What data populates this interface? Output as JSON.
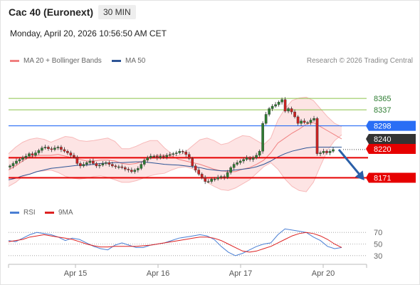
{
  "header": {
    "title": "Cac 40 (Euronext)",
    "timeframe": "30 MIN",
    "datetime": "Monday, April 20, 2026 10:56:50 AM CET"
  },
  "legend": {
    "bollinger": "MA 20 + Bollinger Bands",
    "ma50": "MA 50",
    "copyright": "Research © 2026 Trading Central",
    "rsi": "RSI",
    "rsi_ma": "9MA"
  },
  "colors": {
    "bollinger": "#f08080",
    "ma50": "#2e5596",
    "up": "#2e7d32",
    "down": "#cc2222",
    "resistance_green": "#8bc34a",
    "pivot_blue": "#2a6ef5",
    "support_red": "#e60000",
    "rsi": "#4a7fd4",
    "rsi_ma": "#dd2222"
  },
  "chart_data": [
    {
      "type": "candlestick",
      "title": "Cac 40 (Euronext)",
      "x_tick_labels": [
        "Apr 15",
        "Apr 16",
        "Apr 17",
        "Apr 20"
      ],
      "ylim": [
        8118,
        8440
      ],
      "levels": [
        {
          "value": 8365,
          "label": "8365",
          "kind": "resistance"
        },
        {
          "value": 8337,
          "label": "8337",
          "kind": "resistance"
        },
        {
          "value": 8298,
          "label": "8298",
          "kind": "pivot"
        },
        {
          "value": 8240,
          "label": "8240",
          "kind": "last"
        },
        {
          "value": 8220,
          "label": "8220",
          "kind": "support"
        },
        {
          "value": 8171,
          "label": "8171",
          "kind": "support"
        }
      ],
      "forecast_arrow": {
        "from": 8240,
        "to": 8173
      },
      "close_series": [
        8200,
        8206,
        8212,
        8216,
        8220,
        8224,
        8230,
        8226,
        8232,
        8238,
        8244,
        8246,
        8242,
        8240,
        8244,
        8246,
        8240,
        8236,
        8232,
        8226,
        8222,
        8206,
        8200,
        8204,
        8208,
        8212,
        8206,
        8200,
        8202,
        8206,
        8208,
        8204,
        8200,
        8198,
        8198,
        8196,
        8192,
        8190,
        8186,
        8190,
        8194,
        8204,
        8214,
        8220,
        8224,
        8224,
        8220,
        8224,
        8222,
        8226,
        8228,
        8230,
        8232,
        8236,
        8234,
        8228,
        8218,
        8200,
        8190,
        8180,
        8172,
        8162,
        8162,
        8168,
        8168,
        8172,
        8174,
        8172,
        8184,
        8196,
        8204,
        8208,
        8212,
        8216,
        8220,
        8216,
        8220,
        8226,
        8236,
        8304,
        8326,
        8340,
        8346,
        8350,
        8356,
        8362,
        8334,
        8340,
        8332,
        8320,
        8304,
        8310,
        8306,
        8306,
        8312,
        8316,
        8230,
        8232,
        8236,
        8232,
        8236,
        8240
      ],
      "bollinger_upper": [
        8230,
        8246,
        8258,
        8265,
        8268,
        8265,
        8258,
        8265,
        8272,
        8270,
        8262,
        8260,
        8262,
        8265,
        8268,
        8260,
        8242,
        8242,
        8248,
        8256,
        8262,
        8262,
        8244,
        8230,
        8225,
        8235,
        8250,
        8264,
        8268,
        8262,
        8252,
        8256,
        8266,
        8274,
        8272,
        8262,
        8252,
        8268,
        8312,
        8340,
        8360,
        8366,
        8368,
        8360,
        8340,
        8320,
        8304,
        8296
      ],
      "bollinger_lower": [
        8150,
        8160,
        8174,
        8180,
        8186,
        8188,
        8190,
        8184,
        8175,
        8170,
        8168,
        8170,
        8174,
        8176,
        8172,
        8166,
        8160,
        8160,
        8164,
        8170,
        8176,
        8180,
        8182,
        8190,
        8196,
        8198,
        8193,
        8178,
        8160,
        8150,
        8142,
        8140,
        8146,
        8156,
        8166,
        8182,
        8198,
        8208,
        8192,
        8168,
        8150,
        8140,
        8137,
        8160,
        8200,
        8238,
        8262,
        8276
      ],
      "ma20": [
        8190,
        8200,
        8212,
        8222,
        8226,
        8226,
        8226,
        8228,
        8224,
        8220,
        8216,
        8212,
        8212,
        8214,
        8214,
        8212,
        8206,
        8204,
        8206,
        8212,
        8220,
        8226,
        8226,
        8224,
        8216,
        8212,
        8208,
        8204,
        8198,
        8192,
        8188,
        8186,
        8186,
        8192,
        8196,
        8204,
        8214,
        8232,
        8256,
        8268,
        8280,
        8290,
        8302,
        8306,
        8296,
        8286,
        8276,
        8266
      ],
      "ma50": [
        8166,
        8170,
        8176,
        8180,
        8186,
        8190,
        8194,
        8196,
        8198,
        8200,
        8202,
        8202,
        8204,
        8206,
        8207,
        8208,
        8208,
        8209,
        8210,
        8210,
        8208,
        8206,
        8204,
        8203,
        8202,
        8200,
        8198,
        8196,
        8192,
        8190,
        8188,
        8188,
        8190,
        8192,
        8194,
        8198,
        8204,
        8212,
        8222,
        8230,
        8236,
        8240,
        8244,
        8246,
        8246,
        8246,
        8246,
        8246
      ]
    },
    {
      "type": "line",
      "legend": [
        "RSI",
        "9MA"
      ],
      "ylim": [
        20,
        80
      ],
      "y_ticks": [
        70,
        50,
        30
      ],
      "x_tick_labels": [
        "Apr 15",
        "Apr 16",
        "Apr 17",
        "Apr 20"
      ],
      "rsi": [
        56,
        54,
        60,
        66,
        70,
        68,
        66,
        62,
        56,
        60,
        58,
        52,
        46,
        42,
        40,
        48,
        52,
        48,
        44,
        44,
        48,
        50,
        52,
        56,
        60,
        62,
        64,
        66,
        64,
        58,
        46,
        36,
        30,
        34,
        40,
        46,
        50,
        52,
        66,
        76,
        74,
        72,
        70,
        62,
        56,
        46,
        42,
        44
      ],
      "rsi_ma": [
        54,
        56,
        58,
        62,
        64,
        66,
        64,
        62,
        60,
        58,
        54,
        50,
        47,
        45,
        45,
        46,
        46,
        46,
        46,
        47,
        48,
        50,
        52,
        54,
        56,
        58,
        60,
        62,
        62,
        60,
        56,
        50,
        44,
        38,
        36,
        38,
        42,
        46,
        52,
        58,
        64,
        68,
        70,
        68,
        64,
        58,
        50,
        44
      ]
    }
  ]
}
